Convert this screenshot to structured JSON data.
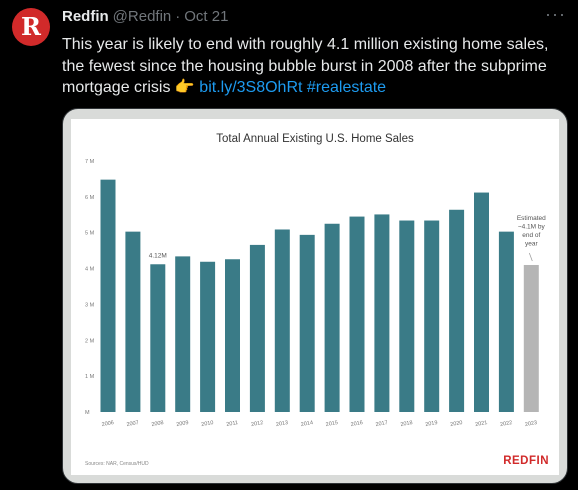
{
  "tweet": {
    "avatar_letter": "R",
    "display_name": "Redfin",
    "handle": "@Redfin",
    "separator": "·",
    "date": "Oct 21",
    "more_label": "···",
    "text_main": "This year is likely to end with roughly 4.1 million existing home sales, the fewest since the housing bubble burst in 2008 after the subprime mortgage crisis ",
    "emoji": "👉",
    "link_text": "bit.ly/3S8OhRt",
    "hashtag": "#realestate"
  },
  "colors": {
    "bar": "#3a7b87",
    "estimate_bar": "#b5b5b5",
    "brand_red": "#d12a2a",
    "link": "#1d9bf0"
  },
  "chart_data": {
    "type": "bar",
    "title": "Total Annual Existing U.S. Home Sales",
    "categories": [
      "2006",
      "2007",
      "2008",
      "2009",
      "2010",
      "2011",
      "2012",
      "2013",
      "2014",
      "2015",
      "2016",
      "2017",
      "2018",
      "2019",
      "2020",
      "2021",
      "2022",
      "2023"
    ],
    "values": [
      6.48,
      5.03,
      4.12,
      4.34,
      4.19,
      4.26,
      4.66,
      5.09,
      4.94,
      5.25,
      5.45,
      5.51,
      5.34,
      5.34,
      5.64,
      6.12,
      5.03,
      4.1
    ],
    "estimated_index": 17,
    "yticks": [
      "M",
      "1 M",
      "2 M",
      "3 M",
      "4 M",
      "5 M",
      "6 M",
      "7 M"
    ],
    "ylim": [
      0,
      7
    ],
    "annotations": [
      {
        "label": "4.12M",
        "category": "2008"
      },
      {
        "label": "Estimated ~4.1M by end of year",
        "category": "2023"
      }
    ],
    "source": "Sources: NAR, Census/HUD",
    "brand": "REDFIN"
  }
}
